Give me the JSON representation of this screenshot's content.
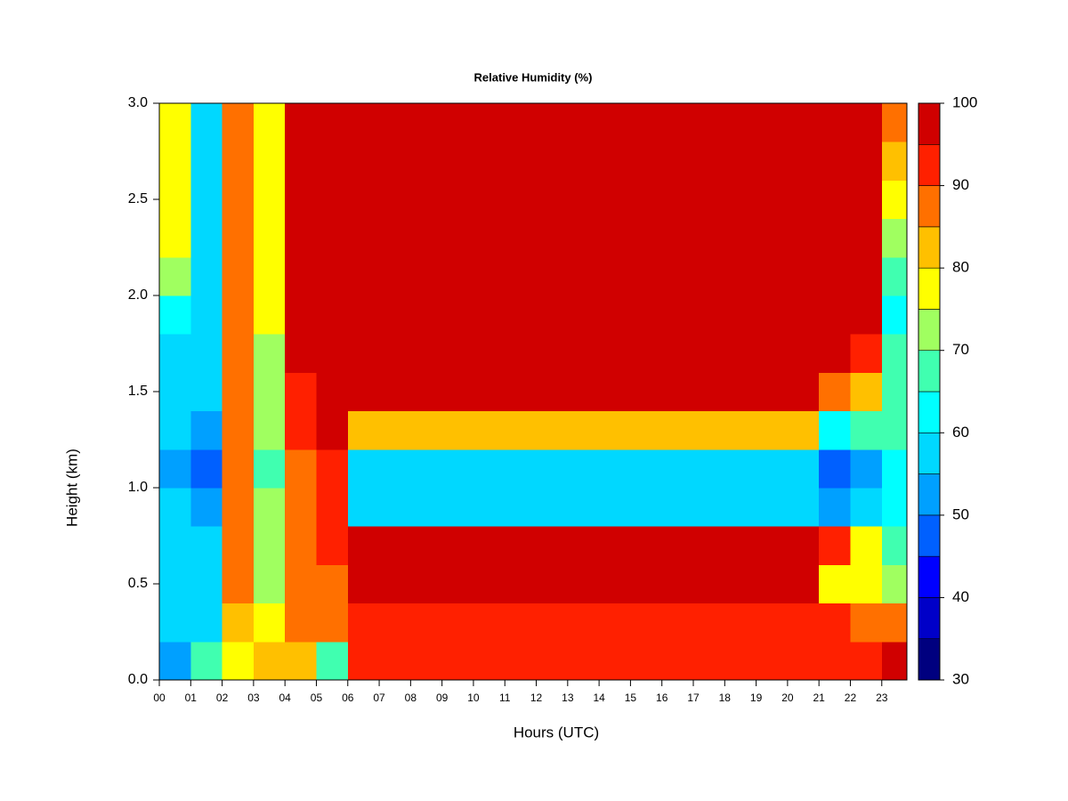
{
  "chart_data": {
    "type": "heatmap",
    "title": "Relative Humidity (%)",
    "x_label": "Hours (UTC)",
    "y_label": "Height (km)",
    "xlim": [
      0,
      23.8
    ],
    "ylim": [
      0,
      3.0
    ],
    "xticks": [
      {
        "value": 0,
        "label": "00"
      },
      {
        "value": 1,
        "label": "01"
      },
      {
        "value": 2,
        "label": "02"
      },
      {
        "value": 3,
        "label": "03"
      },
      {
        "value": 4,
        "label": "04"
      },
      {
        "value": 5,
        "label": "05"
      },
      {
        "value": 6,
        "label": "06"
      },
      {
        "value": 7,
        "label": "07"
      },
      {
        "value": 8,
        "label": "08"
      },
      {
        "value": 9,
        "label": "09"
      },
      {
        "value": 10,
        "label": "10"
      },
      {
        "value": 11,
        "label": "11"
      },
      {
        "value": 12,
        "label": "12"
      },
      {
        "value": 13,
        "label": "13"
      },
      {
        "value": 14,
        "label": "14"
      },
      {
        "value": 15,
        "label": "15"
      },
      {
        "value": 16,
        "label": "16"
      },
      {
        "value": 17,
        "label": "17"
      },
      {
        "value": 18,
        "label": "18"
      },
      {
        "value": 19,
        "label": "19"
      },
      {
        "value": 20,
        "label": "20"
      },
      {
        "value": 21,
        "label": "21"
      },
      {
        "value": 22,
        "label": "22"
      },
      {
        "value": 23,
        "label": "23"
      }
    ],
    "yticks": [
      {
        "value": 0,
        "label": "0.0"
      },
      0.5,
      {
        "value": 1,
        "label": "1.0"
      },
      1.5,
      {
        "value": 2,
        "label": "2.0"
      },
      2.5,
      {
        "value": 3,
        "label": "3.0"
      }
    ],
    "x": [
      0,
      1,
      2,
      3,
      4,
      5,
      6,
      7,
      8,
      9,
      10,
      11,
      12,
      13,
      14,
      15,
      16,
      17,
      18,
      19,
      20,
      21,
      22,
      23
    ],
    "y": [
      0,
      0.2,
      0.4,
      0.6,
      0.8,
      1.0,
      1.2,
      1.4,
      1.6,
      1.8,
      2.0,
      2.2,
      2.4,
      2.6,
      2.8
    ],
    "values": [
      [
        50,
        65,
        75,
        80,
        80,
        65,
        92,
        92,
        92,
        92,
        92,
        92,
        92,
        92,
        92,
        92,
        92,
        92,
        92,
        92,
        92,
        90,
        90,
        95
      ],
      [
        55,
        55,
        80,
        75,
        85,
        85,
        90,
        90,
        90,
        90,
        90,
        90,
        90,
        90,
        90,
        90,
        90,
        90,
        90,
        90,
        90,
        92,
        88,
        85
      ],
      [
        55,
        55,
        85,
        70,
        85,
        88,
        97,
        97,
        97,
        97,
        97,
        97,
        97,
        97,
        97,
        97,
        97,
        97,
        97,
        97,
        97,
        75,
        75,
        70
      ],
      [
        55,
        55,
        85,
        70,
        85,
        90,
        96,
        96,
        96,
        96,
        96,
        96,
        96,
        96,
        96,
        96,
        96,
        96,
        96,
        96,
        96,
        90,
        75,
        65
      ],
      [
        55,
        50,
        85,
        70,
        88,
        90,
        55,
        55,
        55,
        55,
        55,
        55,
        55,
        55,
        55,
        55,
        55,
        55,
        55,
        55,
        55,
        50,
        55,
        60
      ],
      [
        50,
        45,
        85,
        65,
        88,
        92,
        55,
        55,
        55,
        55,
        55,
        55,
        55,
        55,
        55,
        55,
        55,
        55,
        55,
        55,
        55,
        45,
        50,
        60
      ],
      [
        55,
        50,
        85,
        70,
        90,
        95,
        80,
        80,
        80,
        80,
        80,
        80,
        80,
        80,
        80,
        80,
        80,
        80,
        80,
        80,
        80,
        60,
        65,
        65
      ],
      [
        55,
        55,
        85,
        70,
        92,
        97,
        95,
        95,
        95,
        95,
        95,
        95,
        95,
        95,
        95,
        95,
        95,
        95,
        95,
        95,
        95,
        85,
        80,
        65
      ],
      [
        55,
        55,
        85,
        70,
        95,
        99,
        99,
        99,
        99,
        99,
        99,
        99,
        99,
        99,
        99,
        99,
        99,
        99,
        99,
        99,
        99,
        95,
        92,
        65
      ],
      [
        60,
        55,
        85,
        75,
        95,
        99,
        99,
        99,
        99,
        99,
        99,
        99,
        99,
        99,
        99,
        99,
        99,
        99,
        99,
        99,
        99,
        99,
        97,
        60
      ],
      [
        70,
        55,
        85,
        75,
        95,
        99,
        99,
        99,
        99,
        99,
        99,
        99,
        99,
        99,
        99,
        99,
        99,
        99,
        99,
        99,
        99,
        99,
        97,
        65
      ],
      [
        75,
        55,
        85,
        75,
        96,
        99,
        99,
        99,
        99,
        99,
        99,
        99,
        99,
        99,
        99,
        99,
        99,
        99,
        99,
        99,
        99,
        99,
        95,
        70
      ],
      [
        75,
        55,
        88,
        75,
        97,
        99,
        99,
        99,
        99,
        99,
        99,
        99,
        99,
        99,
        99,
        99,
        99,
        99,
        99,
        99,
        99,
        99,
        95,
        75
      ],
      [
        75,
        55,
        88,
        75,
        97,
        99,
        99,
        99,
        99,
        99,
        99,
        99,
        99,
        99,
        99,
        99,
        99,
        99,
        99,
        99,
        99,
        99,
        97,
        80
      ],
      [
        75,
        55,
        88,
        75,
        97,
        99,
        99,
        99,
        99,
        99,
        99,
        99,
        99,
        99,
        99,
        99,
        99,
        99,
        99,
        99,
        99,
        99,
        97,
        85
      ]
    ],
    "levels": [
      30,
      35,
      40,
      45,
      50,
      55,
      60,
      65,
      70,
      75,
      80,
      85,
      90,
      95,
      100
    ],
    "colors": [
      "#00007f",
      "#0000c8",
      "#0000ff",
      "#0060ff",
      "#00a0ff",
      "#00d8ff",
      "#00ffff",
      "#40ffb0",
      "#a0ff60",
      "#ffff00",
      "#ffc000",
      "#ff7000",
      "#ff2000",
      "#d00000",
      "#7f0000"
    ],
    "colorbar_ticks": [
      30,
      40,
      50,
      60,
      70,
      80,
      90,
      100
    ]
  }
}
